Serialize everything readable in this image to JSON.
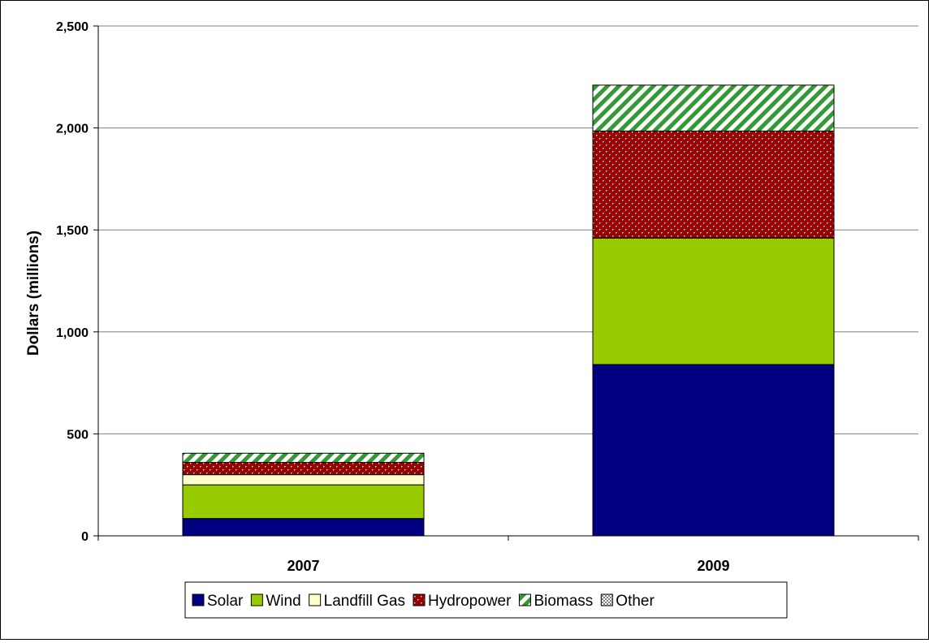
{
  "chart_data": {
    "type": "bar",
    "stacked": true,
    "categories": [
      "2007",
      "2009"
    ],
    "series": [
      {
        "name": "Solar",
        "values": [
          85,
          840
        ],
        "color": "#000080",
        "pattern": "solid"
      },
      {
        "name": "Wind",
        "values": [
          165,
          620
        ],
        "color": "#99CC00",
        "pattern": "solid"
      },
      {
        "name": "Landfill Gas",
        "values": [
          50,
          0
        ],
        "color": "#FFFFCC",
        "pattern": "solid"
      },
      {
        "name": "Hydropower",
        "values": [
          60,
          525
        ],
        "color": "#990000",
        "pattern": "dots"
      },
      {
        "name": "Biomass",
        "values": [
          45,
          225
        ],
        "color": "#339933",
        "pattern": "diagonal-stripes"
      },
      {
        "name": "Other",
        "values": [
          0,
          0
        ],
        "color": "#808080",
        "pattern": "checker"
      }
    ],
    "title": "",
    "xlabel": "",
    "ylabel": "Dollars (millions)",
    "ylim": [
      0,
      2500
    ],
    "yticks": [
      0,
      500,
      1000,
      1500,
      2000,
      2500
    ],
    "ytick_labels": [
      "0",
      "500",
      "1,000",
      "1,500",
      "2,000",
      "2,500"
    ],
    "grid": true,
    "legend_position": "bottom"
  }
}
